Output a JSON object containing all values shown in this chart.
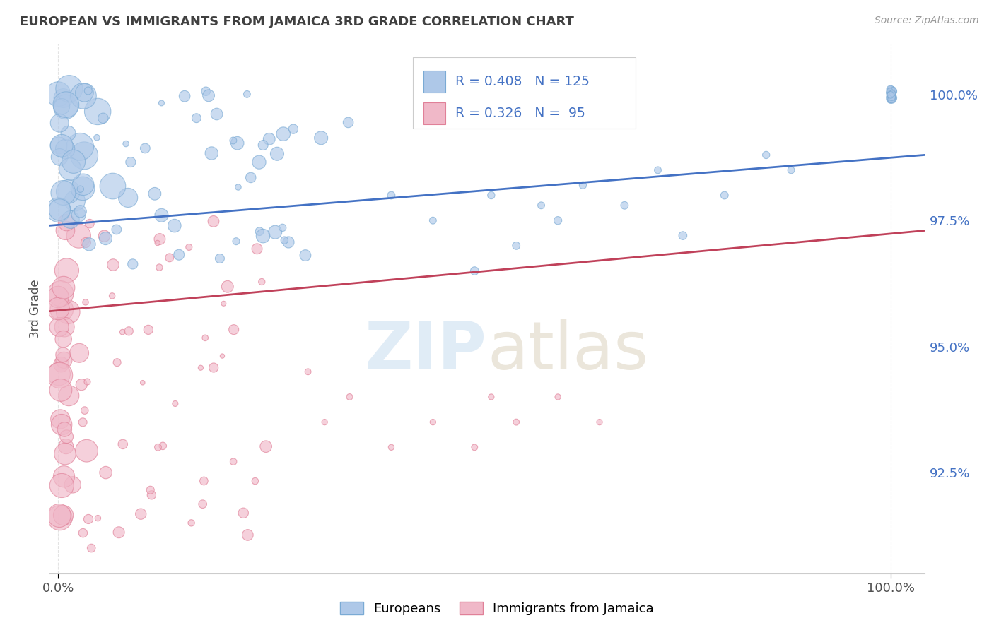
{
  "title": "EUROPEAN VS IMMIGRANTS FROM JAMAICA 3RD GRADE CORRELATION CHART",
  "source_text": "Source: ZipAtlas.com",
  "ylabel": "3rd Grade",
  "watermark": "ZIPatlas",
  "legend_blue_R": 0.408,
  "legend_blue_N": 125,
  "legend_pink_R": 0.326,
  "legend_pink_N": 95,
  "blue_face": "#aec8e8",
  "blue_edge": "#7aaad4",
  "pink_face": "#f0b8c8",
  "pink_edge": "#e08098",
  "trend_blue": "#4472c4",
  "trend_pink": "#c0415a",
  "title_color": "#404040",
  "ylabel_color": "#505050",
  "tick_color": "#505050",
  "legend_text_color": "#4472c4",
  "grid_color": "#c8c8c8",
  "background_color": "#ffffff",
  "xlim": [
    -0.01,
    1.04
  ],
  "ylim": [
    0.905,
    1.01
  ],
  "yticks": [
    0.925,
    0.95,
    0.975,
    1.0
  ],
  "ytick_labels": [
    "92.5%",
    "95.0%",
    "97.5%",
    "100.0%"
  ],
  "xticks": [
    0.0,
    1.0
  ],
  "xtick_labels": [
    "0.0%",
    "100.0%"
  ],
  "blue_trend_x0": 0.0,
  "blue_trend_y0": 0.974,
  "blue_trend_x1": 1.0,
  "blue_trend_y1": 0.988,
  "pink_trend_x0": 0.0,
  "pink_trend_y0": 0.957,
  "pink_trend_x1": 1.0,
  "pink_trend_y1": 0.973
}
